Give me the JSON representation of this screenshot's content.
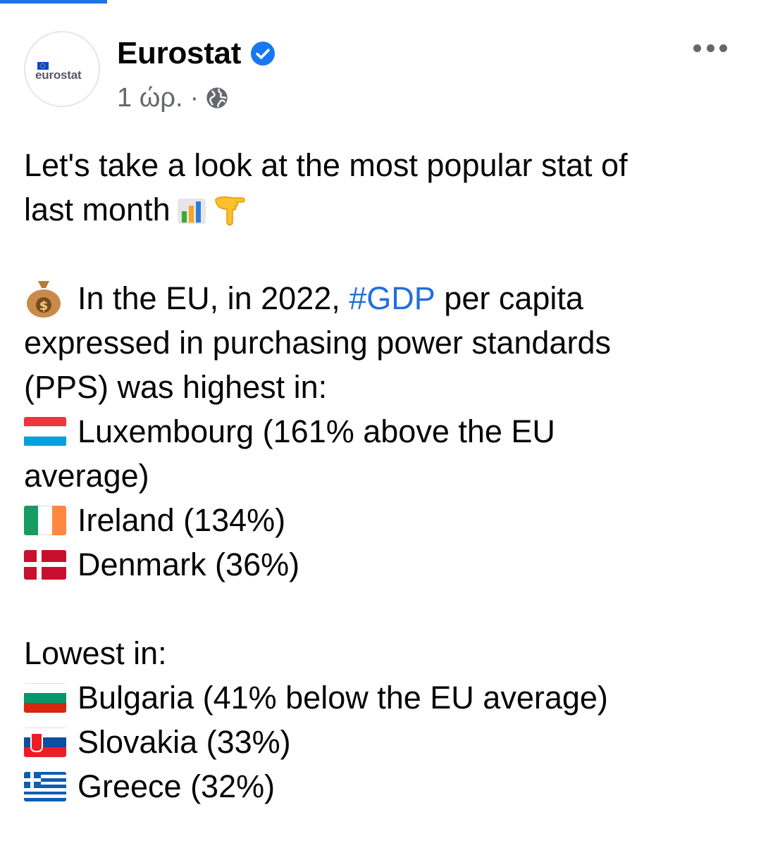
{
  "post": {
    "author": "Eurostat",
    "avatar_logo_text": "eurostat",
    "verified": true,
    "timestamp": "1 ώρ.",
    "separator": "·",
    "audience_icon": "globe-icon",
    "more_icon": "more-options-icon"
  },
  "content": {
    "intro_line_1": "Let's take a look at the most popular stat of",
    "intro_line_2": "last month",
    "intro_emojis": [
      "bar-chart-emoji",
      "pointing-down-emoji"
    ],
    "gdp_prefix": "In the EU, in 2022, ",
    "gdp_hashtag": "#GDP",
    "gdp_suffix": " per capita",
    "gdp_line_2": "expressed in purchasing power standards",
    "gdp_line_3": "(PPS) was highest in:",
    "highest": [
      {
        "flag": "luxembourg",
        "text": "Luxembourg (161% above the EU",
        "continuation": "average)"
      },
      {
        "flag": "ireland",
        "text": "Ireland (134%)"
      },
      {
        "flag": "denmark",
        "text": "Denmark (36%)"
      }
    ],
    "lowest_heading": "Lowest in:",
    "lowest": [
      {
        "flag": "bulgaria",
        "text": "Bulgaria (41% below the EU average)"
      },
      {
        "flag": "slovakia",
        "text": "Slovakia (33%)"
      },
      {
        "flag": "greece",
        "text": "Greece (32%)"
      }
    ]
  },
  "colors": {
    "accent": "#1b74e4",
    "hashtag": "#216fdb",
    "meta_text": "#65676b",
    "verified": "#1877f2"
  }
}
